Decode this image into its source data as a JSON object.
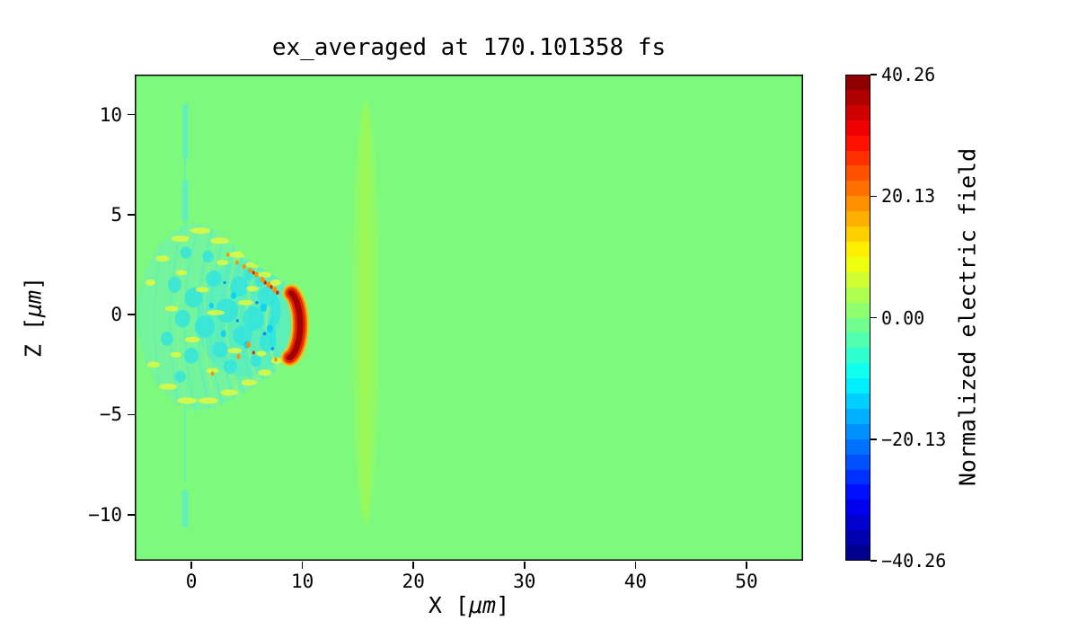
{
  "figure": {
    "title": "ex_averaged at 170.101358 fs"
  },
  "axes": {
    "xlabel_prefix": "X [",
    "xlabel_unit": "μm",
    "xlabel_suffix": "]",
    "ylabel_prefix": "Z [",
    "ylabel_unit": "μm",
    "ylabel_suffix": "]"
  },
  "colorbar": {
    "label": "Normalized electric field",
    "tick_labels": [
      "40.26",
      "20.13",
      "0.00",
      "−20.13",
      "−40.26"
    ],
    "tick_values": [
      40.26,
      20.13,
      0.0,
      -20.13,
      -40.26
    ],
    "vmin": -40.26,
    "vmax": 40.26,
    "band_colors_top_to_bottom": [
      "#8f0000",
      "#af0000",
      "#cf0000",
      "#ef0000",
      "#ff1000",
      "#ff3000",
      "#ff5000",
      "#ff7000",
      "#ff9000",
      "#ffaf00",
      "#ffcf00",
      "#ffef00",
      "#efff10",
      "#cfff30",
      "#afff50",
      "#8fff70",
      "#70ff8f",
      "#50ffaf",
      "#30ffcf",
      "#10ffef",
      "#00efff",
      "#00cfff",
      "#00afff",
      "#0090ff",
      "#0070ff",
      "#0050ff",
      "#0030ff",
      "#0010ff",
      "#0000ef",
      "#0000cf",
      "#0000af",
      "#00008f"
    ]
  },
  "chart_data": {
    "type": "heatmap",
    "title": "ex_averaged at 170.101358 fs",
    "xlabel": "X [μm]",
    "ylabel": "Z [μm]",
    "colorbar_label": "Normalized electric field",
    "xlim": [
      -5.1,
      55.1
    ],
    "ylim": [
      -12.3,
      12.0
    ],
    "clim": [
      -40.26,
      40.26
    ],
    "colormap": "jet",
    "colormap_levels": 32,
    "grid": false,
    "x_tick_values": [
      0,
      10,
      20,
      30,
      40,
      50
    ],
    "x_tick_labels": [
      "0",
      "10",
      "20",
      "30",
      "40",
      "50"
    ],
    "z_tick_values": [
      10,
      5,
      0,
      -5,
      -10
    ],
    "z_tick_labels": [
      "10",
      "5",
      "0",
      "−5",
      "−10"
    ],
    "background_field_value": 0.0,
    "description": "2D PIC-simulation snapshot of normalized electric field ex_averaged: uniform zero-field green background, a turbulent plasma wake fan between x=-5 and x=9.5 um (|z|<4.7 um), an intense crescent-shaped laser pulse at x≈8.5 um / z≈-0.5 um, faint plasma-edge dashes near x≈-0.5 um, and a faint vertical ionization front band at x≈15.7 um spanning |z|<10.6 um",
    "features": {
      "background_color": "#7dfa7d",
      "front_band": {
        "cx": 15.7,
        "cz": 0.1,
        "rx": 1.2,
        "rz": 10.6,
        "color": "#90f968",
        "opacity": 0.9,
        "inner_rx": 0.55,
        "inner_color": "#9ff751",
        "inner_opacity": 0.75
      },
      "edge_dashes": {
        "x": -0.55,
        "color": "#5feec3",
        "segments": [
          {
            "z0": 10.4,
            "z1": 7.9,
            "w": 0.5
          },
          {
            "z0": 6.6,
            "z1": 4.8,
            "w": 0.55
          },
          {
            "z0": 10.45,
            "z1": 4.0,
            "w": 0.14
          },
          {
            "z0": -4.0,
            "z1": -8.3,
            "w": 0.14
          },
          {
            "z0": -8.9,
            "z1": -10.5,
            "w": 0.55
          }
        ]
      },
      "wake": {
        "outline": [
          [
            9.8,
            -0.4
          ],
          [
            9.4,
            0.9
          ],
          [
            8.6,
            1.6
          ],
          [
            7.0,
            2.1
          ],
          [
            5.5,
            2.6
          ],
          [
            4.3,
            3.2
          ],
          [
            3.0,
            3.9
          ],
          [
            1.5,
            4.4
          ],
          [
            0.0,
            4.6
          ],
          [
            -1.5,
            4.2
          ],
          [
            -3.0,
            3.4
          ],
          [
            -4.2,
            2.2
          ],
          [
            -4.8,
            0.8
          ],
          [
            -4.85,
            -0.7
          ],
          [
            -4.3,
            -2.2
          ],
          [
            -3.1,
            -3.5
          ],
          [
            -1.5,
            -4.4
          ],
          [
            0.3,
            -4.8
          ],
          [
            2.3,
            -4.6
          ],
          [
            4.3,
            -4.05
          ],
          [
            6.2,
            -3.4
          ],
          [
            7.9,
            -2.7
          ],
          [
            9.1,
            -1.9
          ]
        ],
        "halo_color": "#6ff2b4",
        "halo_opacity": 0.3,
        "base_color": "#70f2ae",
        "base_opacity": 0.5,
        "core": {
          "cx": 4.8,
          "cz": -0.2,
          "rx": 4.3,
          "rz": 2.9,
          "color": "#48e7d2",
          "opacity": 0.5
        },
        "arc_center": [
          9.5,
          -0.4
        ],
        "arcs": {
          "radii": [
            2.3,
            3.2,
            4.1,
            5.0,
            5.9,
            6.8,
            7.8,
            8.9,
            10.1,
            11.4,
            12.8,
            14.2
          ],
          "a0": 104,
          "a1": 256,
          "color": "#55ecc4",
          "width": 2.6
        },
        "yellow_arcs": {
          "radii": [
            2.75,
            4.55,
            6.35,
            8.35,
            10.75
          ],
          "a0": 112,
          "a1": 248,
          "color": "#c9f559",
          "width": 2
        },
        "cyan_patches": {
          "color": "#2de3e2",
          "items": [
            [
              6.8,
              0.9,
              0.85,
              0.5
            ],
            [
              5.6,
              -0.2,
              0.95,
              0.6
            ],
            [
              6.9,
              -1.35,
              0.75,
              0.5
            ],
            [
              4.3,
              1.4,
              0.8,
              0.5
            ],
            [
              3.2,
              0.2,
              1.0,
              0.6
            ],
            [
              4.6,
              -1.05,
              0.85,
              0.5
            ],
            [
              2.0,
              1.8,
              0.7,
              0.4
            ],
            [
              1.2,
              -0.6,
              0.9,
              0.55
            ],
            [
              2.6,
              -1.75,
              0.7,
              0.4
            ],
            [
              0.2,
              0.85,
              0.8,
              0.5
            ],
            [
              -0.8,
              -0.2,
              0.7,
              0.45
            ],
            [
              0.0,
              -2.05,
              0.65,
              0.4
            ],
            [
              5.2,
              2.0,
              0.5,
              0.3
            ],
            [
              3.5,
              -2.6,
              0.6,
              0.35
            ],
            [
              1.5,
              2.9,
              0.5,
              0.3
            ],
            [
              -1.5,
              1.5,
              0.6,
              0.4
            ],
            [
              -2.2,
              -1.2,
              0.55,
              0.35
            ],
            [
              7.6,
              0.2,
              0.45,
              0.7
            ],
            [
              6.2,
              1.7,
              0.45,
              0.3
            ],
            [
              5.8,
              -2.3,
              0.5,
              0.3
            ],
            [
              -0.5,
              3.1,
              0.5,
              0.3
            ],
            [
              -1.0,
              -3.1,
              0.5,
              0.3
            ],
            [
              7.25,
              -0.8,
              0.35,
              0.75
            ]
          ]
        },
        "deep_cyan_spots": {
          "color": "#00ccff",
          "items": [
            [
              6.5,
              0.35,
              0.3
            ],
            [
              5.0,
              -1.5,
              0.28
            ],
            [
              3.8,
              0.95,
              0.25
            ],
            [
              7.05,
              -0.7,
              0.28
            ],
            [
              2.9,
              -0.95,
              0.25
            ],
            [
              1.8,
              0.45,
              0.22
            ]
          ]
        },
        "blue_specks": {
          "color": "#007fff",
          "items": [
            [
              6.6,
              -0.95,
              0.16
            ],
            [
              5.9,
              0.6,
              0.15
            ],
            [
              4.15,
              -0.3,
              0.14
            ],
            [
              7.3,
              -1.7,
              0.14
            ],
            [
              3.0,
              1.6,
              0.13
            ]
          ]
        },
        "yellow_streaks": {
          "color": "#e8f93a",
          "items": [
            [
              7.6,
              1.6,
              0.5,
              0.16
            ],
            [
              6.6,
              2.0,
              0.6,
              0.16
            ],
            [
              5.6,
              2.5,
              0.7,
              0.16
            ],
            [
              4.2,
              3.0,
              0.8,
              0.16
            ],
            [
              2.6,
              3.7,
              0.9,
              0.16
            ],
            [
              0.8,
              4.2,
              0.9,
              0.16
            ],
            [
              -1.0,
              3.8,
              0.8,
              0.16
            ],
            [
              -2.6,
              2.8,
              0.6,
              0.16
            ],
            [
              -3.7,
              1.6,
              0.45,
              0.16
            ],
            [
              7.7,
              -2.3,
              0.5,
              0.16
            ],
            [
              6.6,
              -2.9,
              0.6,
              0.16
            ],
            [
              5.2,
              -3.4,
              0.7,
              0.16
            ],
            [
              3.4,
              -3.9,
              0.8,
              0.16
            ],
            [
              1.5,
              -4.3,
              0.9,
              0.16
            ],
            [
              -0.4,
              -4.3,
              0.9,
              0.16
            ],
            [
              -2.1,
              -3.6,
              0.8,
              0.16
            ],
            [
              -3.4,
              -2.5,
              0.55,
              0.16
            ],
            [
              4.9,
              0.6,
              0.7,
              0.14
            ],
            [
              3.9,
              -1.8,
              0.65,
              0.14
            ],
            [
              2.2,
              0.1,
              0.8,
              0.14
            ],
            [
              5.5,
              1.3,
              0.55,
              0.14
            ],
            [
              1.0,
              1.25,
              0.6,
              0.14
            ],
            [
              0.1,
              -1.25,
              0.7,
              0.14
            ],
            [
              -1.8,
              0.3,
              0.6,
              0.14
            ],
            [
              6.3,
              -1.95,
              0.45,
              0.14
            ],
            [
              2.8,
              2.6,
              0.55,
              0.13
            ],
            [
              1.9,
              -2.8,
              0.55,
              0.13
            ],
            [
              -0.9,
              2.1,
              0.5,
              0.13
            ],
            [
              -1.4,
              -2.0,
              0.5,
              0.13
            ]
          ]
        },
        "orange_dots": {
          "color": "#ff8c00",
          "items": [
            [
              4.75,
              2.4,
              0.17
            ],
            [
              5.3,
              2.2,
              0.18
            ],
            [
              5.85,
              2.0,
              0.19
            ],
            [
              6.4,
              1.75,
              0.2
            ],
            [
              6.95,
              1.5,
              0.2
            ],
            [
              7.5,
              1.25,
              0.2
            ],
            [
              4.1,
              2.6,
              0.15
            ],
            [
              3.3,
              3.0,
              0.14
            ],
            [
              5.15,
              -1.5,
              0.2
            ],
            [
              4.25,
              -2.1,
              0.17
            ],
            [
              1.9,
              -2.95,
              0.15
            ],
            [
              7.6,
              -2.25,
              0.15
            ]
          ]
        },
        "red_dots": {
          "color": "#e11900",
          "items": [
            [
              5.6,
              2.1,
              0.12
            ],
            [
              6.65,
              1.6,
              0.13
            ],
            [
              7.2,
              1.38,
              0.13
            ],
            [
              7.75,
              1.1,
              0.14
            ],
            [
              5.6,
              -1.9,
              0.12
            ]
          ]
        }
      },
      "laser_pulse": {
        "cx": 8.55,
        "cz": -0.5,
        "rx": 1.25,
        "rz": 1.7,
        "a0": -76,
        "a1": 70,
        "layers": [
          {
            "color": "#ffc400",
            "width": 20,
            "opacity": 0.75
          },
          {
            "color": "#ff6a00",
            "width": 16,
            "opacity": 0.95
          },
          {
            "color": "#e02500",
            "width": 12,
            "opacity": 1
          },
          {
            "color": "#a50000",
            "width": 6.5,
            "opacity": 1
          }
        ]
      }
    }
  }
}
